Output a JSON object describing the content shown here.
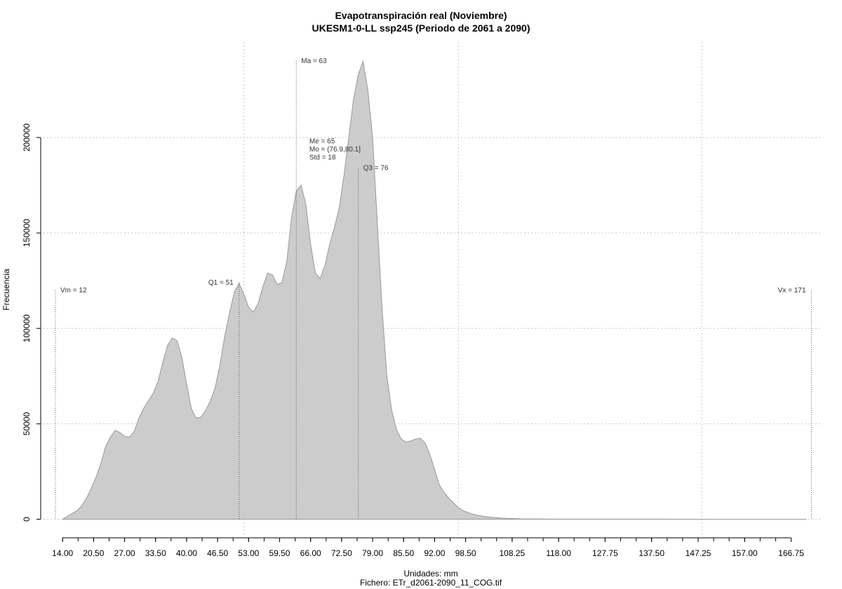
{
  "chart_data": {
    "type": "area",
    "title": "Evapotranspiración real (Noviembre)",
    "subtitle": "UKESM1-0-LL ssp245 (Periodo de 2061 a 2090)",
    "xlabel": "Unidades: mm",
    "caption": "Fichero: ETr_d2061-2090_11_COG.tif",
    "ylabel": "Frecuencia",
    "xlim": [
      10,
      173
    ],
    "ylim": [
      -9000,
      250000
    ],
    "grid": true,
    "fill_color": "#cccccc",
    "stroke_color": "#999999",
    "x_ticks": [
      14,
      20.5,
      27,
      33.5,
      40,
      46.5,
      53,
      59.5,
      66,
      72.5,
      79,
      85.5,
      92,
      98.5,
      108.25,
      118,
      127.75,
      137.5,
      147.25,
      157,
      166.75
    ],
    "x_tick_labels": [
      "14.00",
      "20.50",
      "27.00",
      "33.50",
      "40.00",
      "46.50",
      "53.00",
      "59.50",
      "66.00",
      "72.50",
      "79.00",
      "85.50",
      "92.00",
      "98.50",
      "108.25",
      "118.00",
      "127.75",
      "137.50",
      "147.25",
      "157.00",
      "166.75"
    ],
    "y_ticks": [
      0,
      50000,
      100000,
      150000,
      200000
    ],
    "y_tick_labels": [
      "0",
      "50000",
      "100000",
      "150000",
      "200000"
    ],
    "x_grid": [
      52,
      97,
      148
    ],
    "y_grid": [
      0,
      50000,
      100000,
      150000,
      200000
    ],
    "x": [
      14,
      15,
      16,
      17,
      18,
      19,
      20,
      21,
      22,
      23,
      24,
      25,
      26,
      27,
      28,
      29,
      30,
      31,
      32,
      33,
      34,
      35,
      36,
      37,
      38,
      39,
      40,
      41,
      42,
      43,
      44,
      45,
      46,
      47,
      48,
      49,
      50,
      51,
      52,
      53,
      54,
      55,
      56,
      57,
      58,
      59,
      60,
      61,
      62,
      63,
      64,
      65,
      66,
      67,
      68,
      69,
      70,
      71,
      72,
      73,
      74,
      75,
      76,
      77,
      78,
      79,
      80,
      81,
      82,
      83,
      84,
      85,
      86,
      87,
      88,
      89,
      90,
      91,
      92,
      93,
      94,
      95,
      96,
      97,
      98,
      99,
      100,
      101,
      102,
      104,
      106,
      108,
      110,
      112,
      116,
      120,
      130,
      140,
      150,
      160,
      170
    ],
    "y": [
      0,
      1500,
      3000,
      4500,
      7000,
      11000,
      16000,
      22000,
      29000,
      38000,
      43000,
      46500,
      45500,
      43500,
      43000,
      46000,
      53000,
      58000,
      62000,
      66000,
      72000,
      82000,
      91000,
      95000,
      93500,
      85000,
      71000,
      58000,
      53000,
      53500,
      57000,
      62000,
      69000,
      81000,
      96000,
      108000,
      119000,
      123500,
      118000,
      111000,
      108500,
      113000,
      122000,
      129000,
      128000,
      123000,
      124000,
      135000,
      158000,
      172000,
      175000,
      165000,
      144000,
      129000,
      126000,
      133000,
      144000,
      153000,
      163000,
      180000,
      200000,
      220000,
      233000,
      240000,
      225000,
      200000,
      155000,
      110000,
      75000,
      57000,
      47000,
      42000,
      40500,
      41000,
      42000,
      42500,
      40000,
      34000,
      26000,
      18000,
      14000,
      11000,
      8500,
      6000,
      4500,
      3500,
      2700,
      2100,
      1600,
      1000,
      600,
      350,
      200,
      130,
      80,
      50,
      30,
      20,
      10,
      5,
      0
    ],
    "annotations": [
      {
        "label": "Vm = 12",
        "x": 12.5,
        "y_top": 120000,
        "align": "start"
      },
      {
        "label": "Q1 = 51",
        "x": 51,
        "y_top": 124000,
        "align": "end"
      },
      {
        "label": "Ma = 63",
        "x": 63,
        "y_top": 240000,
        "align": "start"
      },
      {
        "label": "Q3 = 76",
        "x": 76,
        "y_top": 184000,
        "align": "start"
      },
      {
        "label": "Vx = 171",
        "x": 171,
        "y_top": 120000,
        "align": "end"
      }
    ],
    "stats_block": [
      "Me = 65",
      "Mo = (76.9,80.1]",
      "Std = 18"
    ]
  }
}
